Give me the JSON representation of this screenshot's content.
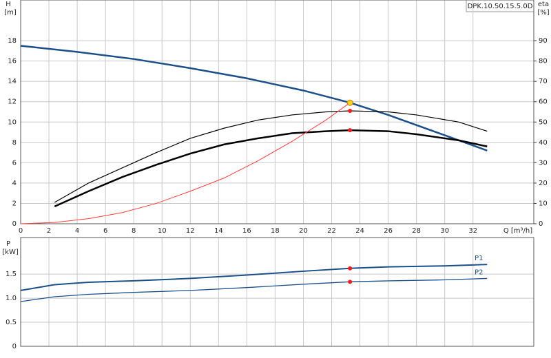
{
  "chart_data": [
    {
      "type": "line",
      "model": "DPK.10.50.15.5.0D",
      "y_label": "H",
      "y_unit": "[m]",
      "y2_label": "eta",
      "y2_unit": "[%]",
      "x_label": "Q [m³/h]",
      "xlim": [
        0,
        36.3
      ],
      "xticks": [
        0,
        2,
        4,
        6,
        8,
        10,
        12,
        14,
        16,
        18,
        20,
        22,
        24,
        26,
        28,
        30,
        32
      ],
      "ylim": [
        0,
        22
      ],
      "yticks": [
        0,
        2,
        4,
        6,
        8,
        10,
        12,
        14,
        16,
        18
      ],
      "y2lim": [
        0,
        110
      ],
      "y2ticks": [
        0,
        10,
        20,
        30,
        40,
        50,
        60,
        70,
        80,
        90
      ],
      "grid": true,
      "series": [
        {
          "color": "#1b4f8a",
          "width": 2.5,
          "x": [
            0,
            4,
            8,
            12,
            16,
            20,
            23.3,
            26,
            30,
            33
          ],
          "values": [
            17.5,
            16.9,
            16.2,
            15.3,
            14.3,
            13.1,
            11.9,
            10.7,
            8.7,
            7.2
          ]
        },
        {
          "color": "#000000",
          "width": 1.2,
          "axis": "y2",
          "x": [
            2.4,
            4.8,
            9.6,
            12,
            14.4,
            16.8,
            19.2,
            21.6,
            23.3,
            26,
            28,
            31,
            33
          ],
          "values": [
            10.5,
            20,
            35,
            42,
            47,
            51,
            53.5,
            55,
            55.5,
            55,
            53.5,
            50,
            45.5
          ]
        },
        {
          "color": "#000000",
          "width": 2.5,
          "axis": "y2",
          "x": [
            2.4,
            4.8,
            7.2,
            9.6,
            12,
            14.4,
            16.8,
            19.2,
            21.6,
            23.3,
            26,
            28,
            31,
            33
          ],
          "values": [
            8.5,
            16,
            23,
            29,
            34.5,
            39,
            42,
            44.5,
            45.5,
            46,
            45.5,
            44,
            41,
            38
          ]
        },
        {
          "color": "#ff3b3b",
          "width": 1,
          "x": [
            0,
            2.4,
            4.8,
            7.2,
            9.6,
            12,
            14.4,
            16.8,
            19.2,
            21.6,
            23.3
          ],
          "values": [
            0,
            0.13,
            0.5,
            1.1,
            2.0,
            3.2,
            4.5,
            6.2,
            8.1,
            10.2,
            11.9
          ]
        }
      ],
      "markers": [
        {
          "x": 23.3,
          "y": 11.9,
          "color": "#ffd21f"
        },
        {
          "x": 23.3,
          "y": 55.5,
          "axis": "y2",
          "color": "#ff1a1a"
        },
        {
          "x": 23.3,
          "y": 46,
          "axis": "y2",
          "color": "#ff1a1a"
        }
      ]
    },
    {
      "type": "line",
      "y_label": "P",
      "y_unit": "[kW]",
      "xlim": [
        0,
        36.3
      ],
      "xticks": [
        0,
        2,
        4,
        6,
        8,
        10,
        12,
        14,
        16,
        18,
        20,
        22,
        24,
        26,
        28,
        30,
        32
      ],
      "ylim": [
        0,
        2.26
      ],
      "yticks": [
        0,
        0.5,
        {
          "value": 1,
          "label": "1.0"
        },
        1.5
      ],
      "grid": true,
      "series": [
        {
          "name": "P1",
          "color": "#1b4f8a",
          "width": 2,
          "x": [
            0,
            2.4,
            4.8,
            8,
            12,
            16,
            20,
            23.3,
            26,
            30,
            33
          ],
          "values": [
            1.16,
            1.28,
            1.33,
            1.36,
            1.41,
            1.48,
            1.56,
            1.62,
            1.65,
            1.67,
            1.7
          ]
        },
        {
          "name": "P2",
          "color": "#1b4f8a",
          "width": 1.3,
          "x": [
            0,
            2.4,
            4.8,
            8,
            12,
            16,
            20,
            23.3,
            26,
            30,
            33
          ],
          "values": [
            0.93,
            1.03,
            1.08,
            1.12,
            1.16,
            1.22,
            1.29,
            1.34,
            1.36,
            1.38,
            1.41
          ]
        }
      ],
      "markers": [
        {
          "x": 23.3,
          "y": 1.62,
          "color": "#ff1a1a"
        },
        {
          "x": 23.3,
          "y": 1.34,
          "color": "#ff1a1a"
        }
      ]
    }
  ]
}
